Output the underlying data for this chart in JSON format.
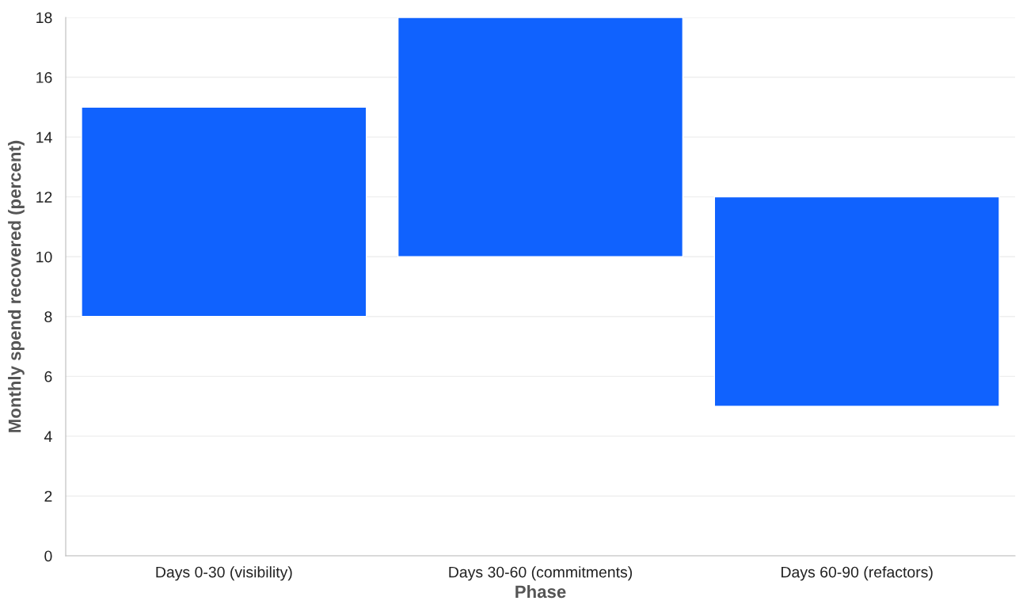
{
  "chart_data": {
    "type": "bar",
    "xlabel": "Phase",
    "ylabel": "Monthly spend recovered (percent)",
    "categories": [
      "Days 0-30 (visibility)",
      "Days 30-60 (commitments)",
      "Days 60-90 (refactors)"
    ],
    "base": [
      8,
      10,
      5
    ],
    "values": [
      7,
      8,
      7
    ],
    "color": "#1062fe",
    "ylim": [
      0,
      18
    ],
    "yticks": [
      0,
      2,
      4,
      6,
      8,
      10,
      12,
      14,
      16,
      18
    ],
    "grid": "y"
  }
}
